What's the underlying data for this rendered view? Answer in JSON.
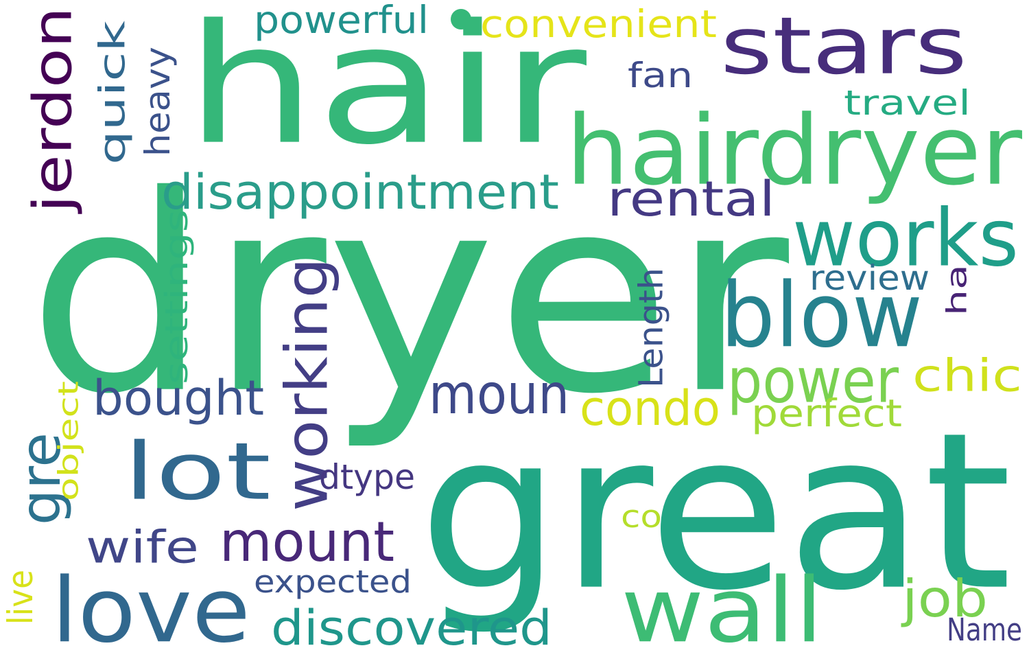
{
  "word_cloud": {
    "words": [
      {
        "text": "dryer",
        "color": "#35b779"
      },
      {
        "text": "great",
        "color": "#21a685"
      },
      {
        "text": "hair",
        "color": "#35b779"
      },
      {
        "text": "hairdryer",
        "color": "#44bf70"
      },
      {
        "text": "stars",
        "color": "#472d7b"
      },
      {
        "text": "works",
        "color": "#1f9e89"
      },
      {
        "text": "blow",
        "color": "#26828e"
      },
      {
        "text": "wall",
        "color": "#3dbc74"
      },
      {
        "text": "love",
        "color": "#31688e"
      },
      {
        "text": "lot",
        "color": "#31688e"
      },
      {
        "text": "power",
        "color": "#7ad151"
      },
      {
        "text": "moun",
        "color": "#3e4989"
      },
      {
        "text": "mount",
        "color": "#482878"
      },
      {
        "text": "working",
        "color": "#433e85"
      },
      {
        "text": "jerdon",
        "color": "#440154"
      },
      {
        "text": "quick",
        "color": "#31688e"
      },
      {
        "text": "disappointment",
        "color": "#2a9d8a"
      },
      {
        "text": "rental",
        "color": "#443983"
      },
      {
        "text": "bought",
        "color": "#3b528b"
      },
      {
        "text": "condo",
        "color": "#d8e219"
      },
      {
        "text": "chic",
        "color": "#d0e11c"
      },
      {
        "text": "discovered",
        "color": "#1f968b"
      },
      {
        "text": "job",
        "color": "#7ad151"
      },
      {
        "text": "wife",
        "color": "#404688"
      },
      {
        "text": "gre",
        "color": "#2c728e"
      },
      {
        "text": "convenient",
        "color": "#e5e419"
      },
      {
        "text": "powerful",
        "color": "#21918c"
      },
      {
        "text": "heavy",
        "color": "#3b528b"
      },
      {
        "text": "fan",
        "color": "#3e4a89"
      },
      {
        "text": "travel",
        "color": "#25ab82"
      },
      {
        "text": "settings",
        "color": "#2fb47c"
      },
      {
        "text": "review",
        "color": "#2e6e8e"
      },
      {
        "text": "ha",
        "color": "#482475"
      },
      {
        "text": "Length",
        "color": "#3b528b"
      },
      {
        "text": "perfect",
        "color": "#a0da39"
      },
      {
        "text": "dtype",
        "color": "#453781"
      },
      {
        "text": "object",
        "color": "#d2e21b"
      },
      {
        "text": "co",
        "color": "#b5de2b"
      },
      {
        "text": "expected",
        "color": "#3b528b"
      },
      {
        "text": "live",
        "color": "#d8e219"
      },
      {
        "text": "Name",
        "color": "#433e85"
      }
    ],
    "dot": {
      "color": "#35b779"
    }
  }
}
